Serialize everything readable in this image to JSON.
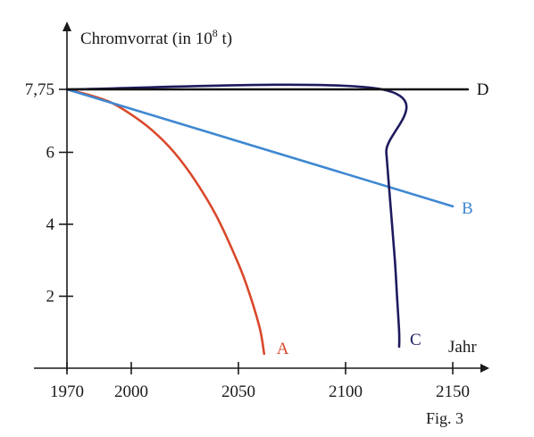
{
  "figure_label": "Fig. 3",
  "chart_data": {
    "type": "line",
    "title": "",
    "ylabel_main": "Chromvorrat (in 10",
    "ylabel_exp": "8",
    "ylabel_tail": " t)",
    "xlabel": "Jahr",
    "xlim": [
      1970,
      2150
    ],
    "ylim": [
      0,
      7.75
    ],
    "x_ticks": [
      {
        "value": 1970,
        "label": "1970"
      },
      {
        "value": 2000,
        "label": "2000"
      },
      {
        "value": 2050,
        "label": "2050"
      },
      {
        "value": 2100,
        "label": "2100"
      },
      {
        "value": 2150,
        "label": "2150"
      }
    ],
    "y_ticks": [
      {
        "value": 2,
        "label": "2"
      },
      {
        "value": 4,
        "label": "4"
      },
      {
        "value": 6,
        "label": "6"
      },
      {
        "value": 7.75,
        "label": "7,75"
      }
    ],
    "grid": false,
    "legend": "none",
    "series": [
      {
        "name": "A",
        "color": "#d9482b",
        "x": [
          1970,
          1980,
          1990,
          2000,
          2010,
          2020,
          2030,
          2040,
          2050,
          2055,
          2060,
          2062
        ],
        "y": [
          7.75,
          7.6,
          7.4,
          7.05,
          6.6,
          6.0,
          5.2,
          4.2,
          2.9,
          2.1,
          1.1,
          0.4
        ]
      },
      {
        "name": "B",
        "color": "#3f88d2",
        "x": [
          1970,
          2150
        ],
        "y": [
          7.75,
          4.5
        ]
      },
      {
        "name": "C",
        "color": "#1e1a5e",
        "x": [
          1970,
          2117,
          2119,
          2121,
          2123,
          2124,
          2125,
          2125
        ],
        "y": [
          7.75,
          7.75,
          6.0,
          4.5,
          3.0,
          2.0,
          1.0,
          0.6
        ]
      },
      {
        "name": "D",
        "color": "#111111",
        "x": [
          1970,
          2157
        ],
        "y": [
          7.75,
          7.75
        ]
      }
    ]
  }
}
